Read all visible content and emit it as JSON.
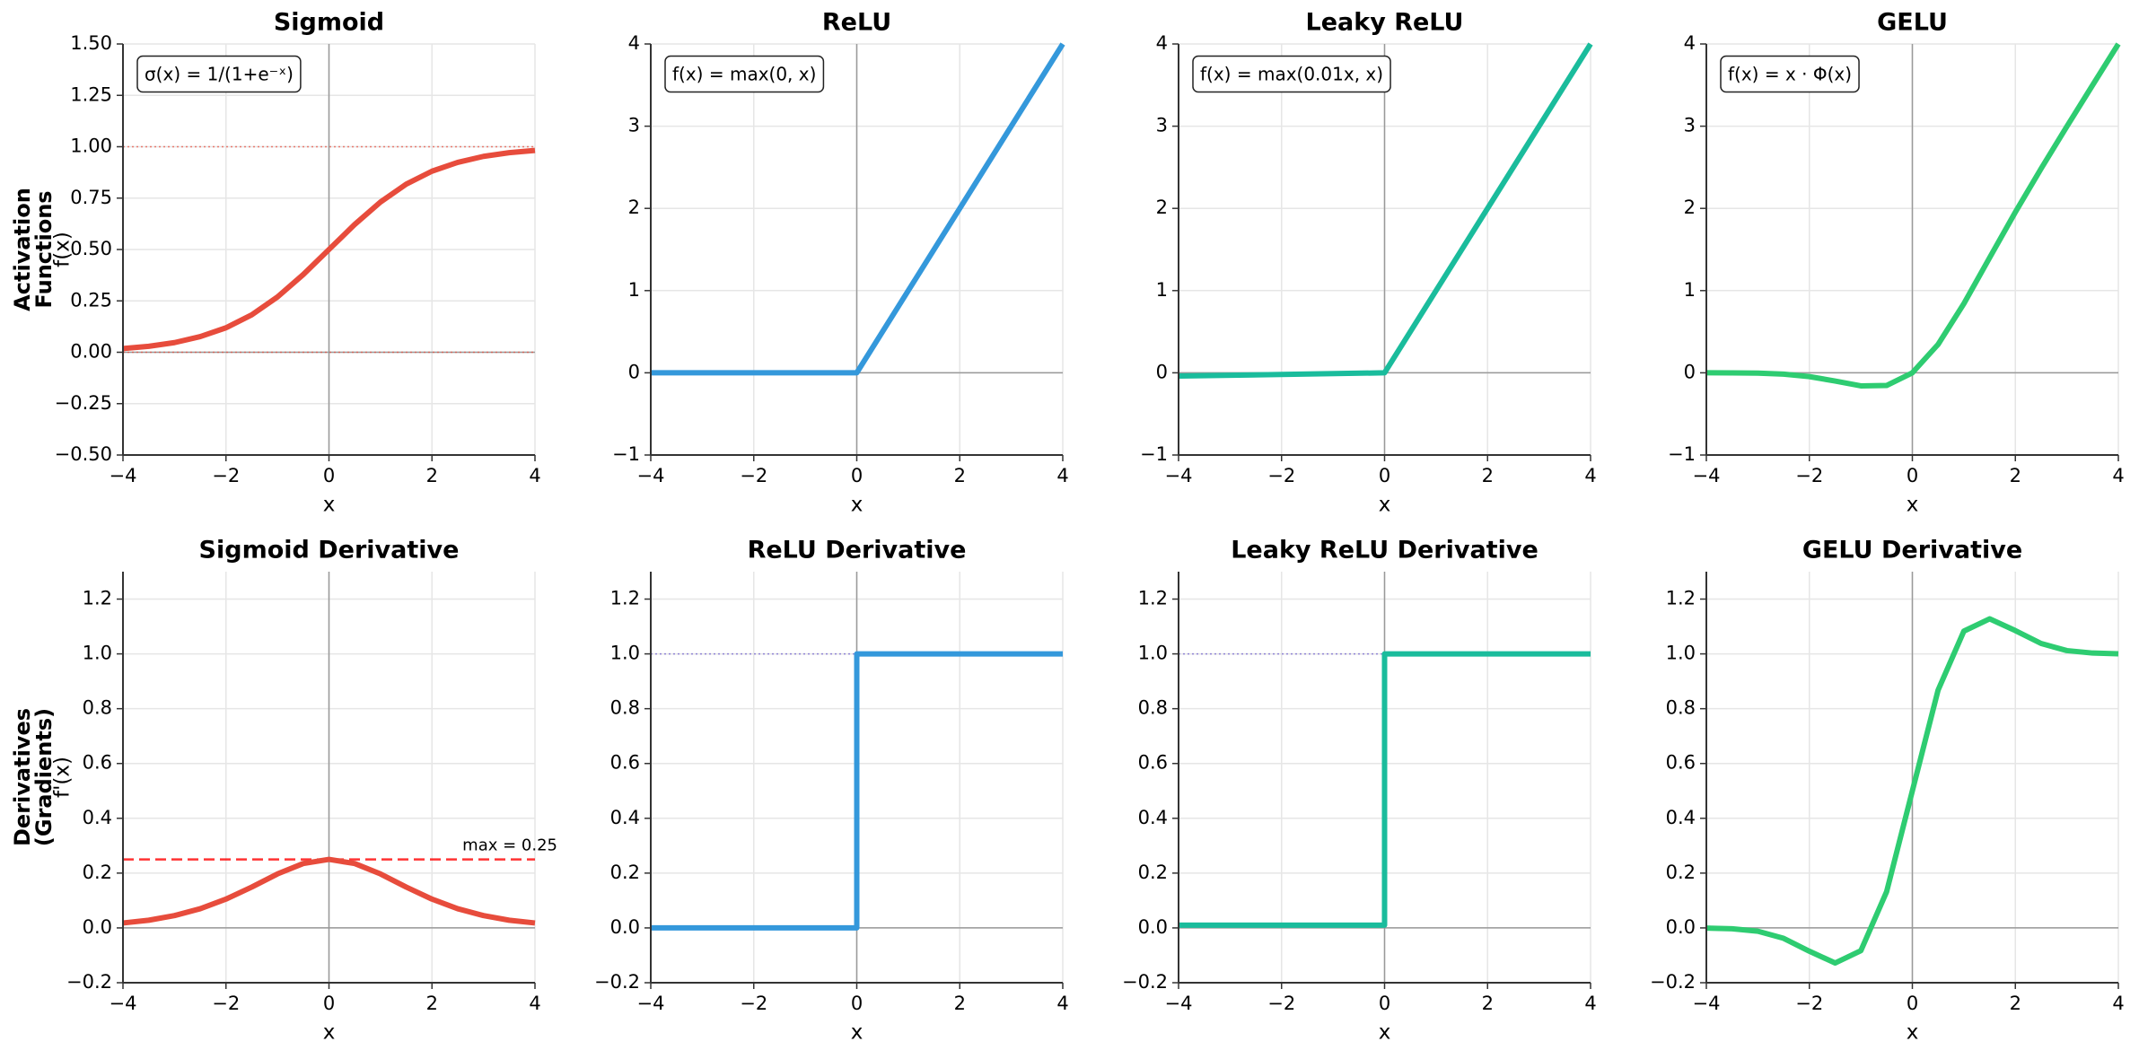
{
  "row_labels": [
    [
      "Activation",
      "Functions"
    ],
    [
      "Derivatives",
      "(Gradients)"
    ]
  ],
  "chart_data": [
    {
      "type": "line",
      "title": "Sigmoid",
      "title_color": "#e74c3c",
      "color": "#e74c3c",
      "xlabel": "x",
      "ylabel": "f(x)",
      "formula": "σ(x) = 1/(1+e⁻ˣ)",
      "x": [
        -4,
        -3.5,
        -3,
        -2.5,
        -2,
        -1.5,
        -1,
        -0.5,
        0,
        0.5,
        1,
        1.5,
        2,
        2.5,
        3,
        3.5,
        4
      ],
      "values": [
        0.018,
        0.029,
        0.047,
        0.076,
        0.119,
        0.182,
        0.269,
        0.378,
        0.5,
        0.622,
        0.731,
        0.818,
        0.881,
        0.924,
        0.953,
        0.971,
        0.982
      ],
      "hlines": [
        {
          "value": 0,
          "color": "#e74c3c",
          "style": "dotted"
        },
        {
          "value": 1,
          "color": "#e74c3c",
          "style": "dotted"
        }
      ],
      "xlim": [
        -4,
        4
      ],
      "xticks": [
        {
          "value": -4,
          "label": "−4"
        },
        {
          "value": -2,
          "label": "−2"
        },
        0,
        2,
        4
      ],
      "ylim": [
        -0.5,
        1.5
      ],
      "yticks": [
        {
          "value": -0.5,
          "label": "−0.50"
        },
        {
          "value": -0.25,
          "label": "−0.25"
        },
        {
          "value": 0,
          "label": "0.00"
        },
        0.25,
        {
          "value": 0.5,
          "label": "0.50"
        },
        0.75,
        {
          "value": 1,
          "label": "1.00"
        },
        1.25,
        {
          "value": 1.5,
          "label": "1.50"
        }
      ],
      "grid": true
    },
    {
      "type": "line",
      "title": "ReLU",
      "title_color": "#3498db",
      "color": "#3498db",
      "xlabel": "x",
      "formula": "f(x) = max(0, x)",
      "x": [
        -4,
        0,
        4
      ],
      "values": [
        0,
        0,
        4
      ],
      "xlim": [
        -4,
        4
      ],
      "xticks": [
        {
          "value": -4,
          "label": "−4"
        },
        {
          "value": -2,
          "label": "−2"
        },
        0,
        2,
        4
      ],
      "ylim": [
        -1,
        4
      ],
      "yticks": [
        {
          "value": -1,
          "label": "−1"
        },
        0,
        1,
        2,
        3,
        4
      ],
      "grid": true
    },
    {
      "type": "line",
      "title": "Leaky ReLU",
      "title_color": "#1abc9c",
      "color": "#1abc9c",
      "xlabel": "x",
      "formula": "f(x) = max(0.01x, x)",
      "x": [
        -4,
        0,
        4
      ],
      "values": [
        -0.04,
        0,
        4
      ],
      "xlim": [
        -4,
        4
      ],
      "xticks": [
        {
          "value": -4,
          "label": "−4"
        },
        {
          "value": -2,
          "label": "−2"
        },
        0,
        2,
        4
      ],
      "ylim": [
        -1,
        4
      ],
      "yticks": [
        {
          "value": -1,
          "label": "−1"
        },
        0,
        1,
        2,
        3,
        4
      ],
      "grid": true
    },
    {
      "type": "line",
      "title": "GELU",
      "title_color": "#2ecc71",
      "color": "#2ecc71",
      "xlabel": "x",
      "formula": "f(x) = x · Φ(x)",
      "x": [
        -4,
        -3.5,
        -3,
        -2.5,
        -2,
        -1.5,
        -1,
        -0.5,
        0,
        0.5,
        1,
        1.5,
        2,
        2.5,
        3,
        3.5,
        4
      ],
      "values": [
        -0.0001,
        -0.001,
        -0.004,
        -0.016,
        -0.046,
        -0.1,
        -0.159,
        -0.154,
        0,
        0.346,
        0.841,
        1.4,
        1.954,
        2.484,
        2.996,
        3.499,
        4.0
      ],
      "xlim": [
        -4,
        4
      ],
      "xticks": [
        {
          "value": -4,
          "label": "−4"
        },
        {
          "value": -2,
          "label": "−2"
        },
        0,
        2,
        4
      ],
      "ylim": [
        -1,
        4
      ],
      "yticks": [
        {
          "value": -1,
          "label": "−1"
        },
        0,
        1,
        2,
        3,
        4
      ],
      "grid": true
    },
    {
      "type": "line",
      "title": "Sigmoid Derivative",
      "title_color": "#e74c3c",
      "color": "#e74c3c",
      "xlabel": "x",
      "ylabel": "f'(x)",
      "x": [
        -4,
        -3.5,
        -3,
        -2.5,
        -2,
        -1.5,
        -1,
        -0.5,
        0,
        0.5,
        1,
        1.5,
        2,
        2.5,
        3,
        3.5,
        4
      ],
      "values": [
        0.018,
        0.028,
        0.045,
        0.07,
        0.105,
        0.149,
        0.197,
        0.235,
        0.25,
        0.235,
        0.197,
        0.149,
        0.105,
        0.07,
        0.045,
        0.028,
        0.018
      ],
      "hlines": [
        {
          "value": 0.25,
          "color": "#ff0000",
          "style": "dashed",
          "label": "max = 0.25"
        }
      ],
      "xlim": [
        -4,
        4
      ],
      "xticks": [
        {
          "value": -4,
          "label": "−4"
        },
        {
          "value": -2,
          "label": "−2"
        },
        0,
        2,
        4
      ],
      "ylim": [
        -0.2,
        1.3
      ],
      "yticks": [
        {
          "value": -0.2,
          "label": "−0.2"
        },
        {
          "value": 0,
          "label": "0.0"
        },
        0.2,
        0.4,
        0.6,
        0.8,
        {
          "value": 1,
          "label": "1.0"
        },
        1.2
      ],
      "grid": true
    },
    {
      "type": "line",
      "title": "ReLU Derivative",
      "title_color": "#3498db",
      "color": "#3498db",
      "xlabel": "x",
      "x": [
        -4,
        0,
        0,
        4
      ],
      "values": [
        0,
        0,
        1,
        1
      ],
      "hlines": [
        {
          "value": 1,
          "color": "#6a5acd",
          "style": "dotted"
        }
      ],
      "xlim": [
        -4,
        4
      ],
      "xticks": [
        {
          "value": -4,
          "label": "−4"
        },
        {
          "value": -2,
          "label": "−2"
        },
        0,
        2,
        4
      ],
      "ylim": [
        -0.2,
        1.3
      ],
      "yticks": [
        {
          "value": -0.2,
          "label": "−0.2"
        },
        {
          "value": 0,
          "label": "0.0"
        },
        0.2,
        0.4,
        0.6,
        0.8,
        {
          "value": 1,
          "label": "1.0"
        },
        1.2
      ],
      "grid": true
    },
    {
      "type": "line",
      "title": "Leaky ReLU Derivative",
      "title_color": "#1abc9c",
      "color": "#1abc9c",
      "xlabel": "x",
      "x": [
        -4,
        0,
        0,
        4
      ],
      "values": [
        0.01,
        0.01,
        1,
        1
      ],
      "hlines": [
        {
          "value": 1,
          "color": "#6a5acd",
          "style": "dotted"
        }
      ],
      "xlim": [
        -4,
        4
      ],
      "xticks": [
        {
          "value": -4,
          "label": "−4"
        },
        {
          "value": -2,
          "label": "−2"
        },
        0,
        2,
        4
      ],
      "ylim": [
        -0.2,
        1.3
      ],
      "yticks": [
        {
          "value": -0.2,
          "label": "−0.2"
        },
        {
          "value": 0,
          "label": "0.0"
        },
        0.2,
        0.4,
        0.6,
        0.8,
        {
          "value": 1,
          "label": "1.0"
        },
        1.2
      ],
      "grid": true
    },
    {
      "type": "line",
      "title": "GELU Derivative",
      "title_color": "#2ecc71",
      "color": "#2ecc71",
      "xlabel": "x",
      "x": [
        -4,
        -3.5,
        -3,
        -2.5,
        -2,
        -1.5,
        -1,
        -0.5,
        0,
        0.5,
        1,
        1.5,
        2,
        2.5,
        3,
        3.5,
        4
      ],
      "values": [
        -0.0005,
        -0.003,
        -0.012,
        -0.038,
        -0.085,
        -0.128,
        -0.083,
        0.132,
        0.5,
        0.868,
        1.083,
        1.128,
        1.085,
        1.038,
        1.012,
        1.003,
        1.0005
      ],
      "xlim": [
        -4,
        4
      ],
      "xticks": [
        {
          "value": -4,
          "label": "−4"
        },
        {
          "value": -2,
          "label": "−2"
        },
        0,
        2,
        4
      ],
      "ylim": [
        -0.2,
        1.3
      ],
      "yticks": [
        {
          "value": -0.2,
          "label": "−0.2"
        },
        {
          "value": 0,
          "label": "0.0"
        },
        0.2,
        0.4,
        0.6,
        0.8,
        {
          "value": 1,
          "label": "1.0"
        },
        1.2
      ],
      "grid": true
    }
  ]
}
